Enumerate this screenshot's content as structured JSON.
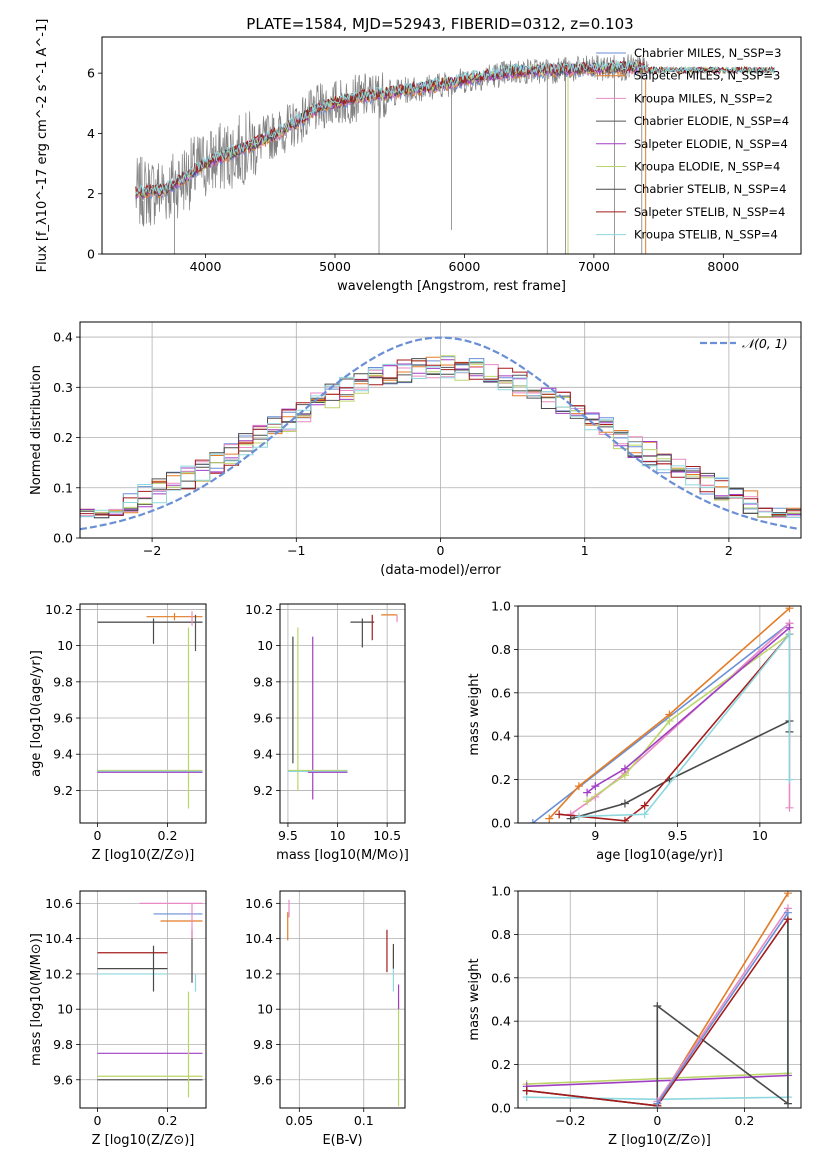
{
  "title": "PLATE=1584, MJD=52943, FIBERID=0312, z=0.103",
  "colors": [
    "#6a8fd6",
    "#e37c27",
    "#e88bc4",
    "#555555",
    "#a03fc4",
    "#bcd56a",
    "#4a4a4a",
    "#a51c1c",
    "#8dd7df"
  ],
  "chart_data": [
    {
      "id": "spectrum",
      "type": "line",
      "xlabel": "wavelength [Angstrom, rest frame]",
      "ylabel": "Flux [f_λ10^-17 erg cm^-2 s^-1 A^-1]",
      "xlim": [
        3200,
        8600
      ],
      "ylim": [
        0,
        7.2
      ],
      "xticks": [
        4000,
        5000,
        6000,
        7000,
        8000
      ],
      "yticks": [
        0,
        2,
        4,
        6
      ],
      "legend_position": "top-right",
      "legend": [
        "Chabrier MILES, N_SSP=3",
        "Salpeter MILES, N_SSP=3",
        "Kroupa MILES, N_SSP=2",
        "Chabrier ELODIE, N_SSP=4",
        "Salpeter ELODIE, N_SSP=4",
        "Kroupa ELODIE, N_SSP=4",
        "Chabrier STELIB, N_SSP=4",
        "Salpeter STELIB, N_SSP=4",
        "Kroupa STELIB, N_SSP=4"
      ],
      "data_color": "#808080",
      "continuum_x": [
        3450,
        3700,
        4000,
        4300,
        4600,
        4900,
        5200,
        5500,
        5800,
        6100,
        6400,
        6700,
        7000,
        7200,
        7400
      ],
      "continuum_y": [
        2.0,
        2.15,
        3.0,
        3.5,
        4.1,
        4.9,
        5.2,
        5.4,
        5.6,
        5.85,
        6.05,
        6.1,
        6.15,
        6.2,
        6.15
      ]
    },
    {
      "id": "residuals",
      "type": "line",
      "xlabel": "(data-model)/error",
      "ylabel": "Normed distribution",
      "xlim": [
        -2.5,
        2.5
      ],
      "ylim": [
        0,
        0.43
      ],
      "xticks": [
        -2,
        -1,
        0,
        1,
        2
      ],
      "yticks": [
        0.0,
        0.1,
        0.2,
        0.3,
        0.4
      ],
      "grid": true,
      "legend_position": "top-right",
      "legend": [
        "𝒩(0, 1)"
      ],
      "gaussian": {
        "mean": 0,
        "sigma": 1,
        "color": "#6a8fd6"
      }
    },
    {
      "id": "age-vs-Z",
      "type": "scatter",
      "xlabel": "Z [log10(Z/Z⊙)]",
      "ylabel": "age  [log10(age/yr)]",
      "xlim": [
        -0.05,
        0.31
      ],
      "ylim": [
        9.02,
        10.23
      ],
      "xticks": [
        0.0,
        0.2
      ],
      "yticks": [
        9.2,
        9.4,
        9.6,
        9.8,
        10.0,
        10.2
      ],
      "grid": true,
      "points": [
        {
          "x": 0.15,
          "y": 10.13,
          "xerr": 0.15,
          "yerr": 0.0,
          "c": 6
        },
        {
          "x": 0.15,
          "y": 10.13,
          "xerr": 0.15,
          "yerr": 0.0,
          "c": 3
        },
        {
          "x": 0.16,
          "y": 10.08,
          "xerr": 0.0,
          "yerr": 0.07,
          "c": 6
        },
        {
          "x": 0.22,
          "y": 10.16,
          "xerr": 0.08,
          "yerr": 0.02,
          "c": 1
        },
        {
          "x": 0.27,
          "y": 10.15,
          "xerr": 0.0,
          "yerr": 0.04,
          "c": 2
        },
        {
          "x": 0.28,
          "y": 10.07,
          "xerr": 0.0,
          "yerr": 0.1,
          "c": 3
        },
        {
          "x": 0.26,
          "y": 9.6,
          "xerr": 0.0,
          "yerr": 0.5,
          "c": 5
        },
        {
          "x": 0.15,
          "y": 9.31,
          "xerr": 0.15,
          "yerr": 0.0,
          "c": 5
        },
        {
          "x": 0.15,
          "y": 9.305,
          "xerr": 0.15,
          "yerr": 0.0,
          "c": 8
        },
        {
          "x": 0.15,
          "y": 9.3,
          "xerr": 0.15,
          "yerr": 0.0,
          "c": 4
        }
      ]
    },
    {
      "id": "age-vs-mass",
      "type": "scatter",
      "xlabel": "mass [log10(M/M⊙)]",
      "ylabel": "",
      "xlim": [
        9.42,
        10.68
      ],
      "ylim": [
        9.02,
        10.23
      ],
      "xticks": [
        9.5,
        10.0,
        10.5
      ],
      "yticks": [
        9.2,
        9.4,
        9.6,
        9.8,
        10.0,
        10.2
      ],
      "grid": true,
      "points": [
        {
          "x": 10.25,
          "y": 10.13,
          "xerr": 0.12,
          "yerr": 0.0,
          "c": 6
        },
        {
          "x": 10.35,
          "y": 10.1,
          "xerr": 0.0,
          "yerr": 0.07,
          "c": 7
        },
        {
          "x": 10.25,
          "y": 10.07,
          "xerr": 0.0,
          "yerr": 0.08,
          "c": 6
        },
        {
          "x": 10.52,
          "y": 10.17,
          "xerr": 0.08,
          "yerr": 0.0,
          "c": 1
        },
        {
          "x": 10.6,
          "y": 10.15,
          "xerr": 0.0,
          "yerr": 0.02,
          "c": 2
        },
        {
          "x": 9.6,
          "y": 9.65,
          "xerr": 0.0,
          "yerr": 0.45,
          "c": 5
        },
        {
          "x": 9.75,
          "y": 9.6,
          "xerr": 0.0,
          "yerr": 0.45,
          "c": 4
        },
        {
          "x": 9.8,
          "y": 9.31,
          "xerr": 0.3,
          "yerr": 0.0,
          "c": 5
        },
        {
          "x": 9.8,
          "y": 9.305,
          "xerr": 0.3,
          "yerr": 0.0,
          "c": 8
        },
        {
          "x": 9.9,
          "y": 9.3,
          "xerr": 0.2,
          "yerr": 0.0,
          "c": 4
        },
        {
          "x": 9.55,
          "y": 9.7,
          "xerr": 0.0,
          "yerr": 0.35,
          "c": 6
        }
      ]
    },
    {
      "id": "massweight-vs-age",
      "type": "line",
      "xlabel": "age  [log10(age/yr)]",
      "ylabel": "mass weight",
      "xlim": [
        8.53,
        10.25
      ],
      "ylim": [
        0,
        1.0
      ],
      "xticks": [
        9.0,
        9.5,
        10.0
      ],
      "yticks": [
        0.0,
        0.2,
        0.4,
        0.6,
        0.8,
        1.0
      ],
      "grid": true,
      "series": [
        {
          "c": 0,
          "x": [
            8.62,
            10.18
          ],
          "y": [
            0.0,
            0.92
          ]
        },
        {
          "c": 1,
          "x": [
            8.72,
            8.9,
            9.45,
            10.18
          ],
          "y": [
            0.02,
            0.17,
            0.5,
            0.99
          ]
        },
        {
          "c": 2,
          "x": [
            8.85,
            9.0,
            9.18,
            10.18,
            10.18
          ],
          "y": [
            0.04,
            0.12,
            0.23,
            0.92,
            0.07
          ]
        },
        {
          "c": 5,
          "x": [
            8.95,
            9.18,
            9.45,
            10.18
          ],
          "y": [
            0.1,
            0.22,
            0.47,
            0.87
          ]
        },
        {
          "c": 4,
          "x": [
            8.95,
            9.0,
            9.18,
            10.18
          ],
          "y": [
            0.14,
            0.17,
            0.25,
            0.9
          ]
        },
        {
          "c": 6,
          "x": [
            8.85,
            9.18,
            9.45,
            10.18,
            10.18
          ],
          "y": [
            0.02,
            0.09,
            0.2,
            0.47,
            0.42
          ]
        },
        {
          "c": 7,
          "x": [
            8.78,
            9.18,
            9.3,
            10.18
          ],
          "y": [
            0.04,
            0.01,
            0.08,
            0.87
          ]
        },
        {
          "c": 8,
          "x": [
            8.9,
            9.3,
            10.18,
            10.18
          ],
          "y": [
            0.03,
            0.04,
            0.87,
            0.2
          ]
        }
      ]
    },
    {
      "id": "mass-vs-Z",
      "type": "scatter",
      "xlabel": "Z [log10(Z/Z⊙)]",
      "ylabel": "mass [log10(M/M⊙)]",
      "xlim": [
        -0.05,
        0.31
      ],
      "ylim": [
        9.44,
        10.67
      ],
      "xticks": [
        0.0,
        0.2
      ],
      "yticks": [
        9.6,
        9.8,
        10.0,
        10.2,
        10.4,
        10.6
      ],
      "grid": true,
      "points": [
        {
          "x": 0.21,
          "y": 10.6,
          "xerr": 0.09,
          "yerr": 0.0,
          "c": 2
        },
        {
          "x": 0.23,
          "y": 10.54,
          "xerr": 0.07,
          "yerr": 0.0,
          "c": 0
        },
        {
          "x": 0.24,
          "y": 10.5,
          "xerr": 0.06,
          "yerr": 0.0,
          "c": 1
        },
        {
          "x": 0.1,
          "y": 10.32,
          "xerr": 0.1,
          "yerr": 0.0,
          "c": 7
        },
        {
          "x": 0.1,
          "y": 10.23,
          "xerr": 0.1,
          "yerr": 0.0,
          "c": 6
        },
        {
          "x": 0.1,
          "y": 10.2,
          "xerr": 0.1,
          "yerr": 0.0,
          "c": 8
        },
        {
          "x": 0.15,
          "y": 9.75,
          "xerr": 0.15,
          "yerr": 0.0,
          "c": 4
        },
        {
          "x": 0.15,
          "y": 9.62,
          "xerr": 0.15,
          "yerr": 0.0,
          "c": 5
        },
        {
          "x": 0.15,
          "y": 9.6,
          "xerr": 0.15,
          "yerr": 0.0,
          "c": 3
        },
        {
          "x": 0.16,
          "y": 10.23,
          "xerr": 0.0,
          "yerr": 0.13,
          "c": 6
        },
        {
          "x": 0.27,
          "y": 10.3,
          "xerr": 0.0,
          "yerr": 0.15,
          "c": 6
        },
        {
          "x": 0.26,
          "y": 9.8,
          "xerr": 0.0,
          "yerr": 0.3,
          "c": 5
        },
        {
          "x": 0.27,
          "y": 10.5,
          "xerr": 0.0,
          "yerr": 0.1,
          "c": 2
        },
        {
          "x": 0.28,
          "y": 10.15,
          "xerr": 0.0,
          "yerr": 0.05,
          "c": 8
        }
      ]
    },
    {
      "id": "mass-vs-EBV",
      "type": "scatter",
      "xlabel": "E(B-V)",
      "ylabel": "",
      "xlim": [
        0.035,
        0.132
      ],
      "ylim": [
        9.44,
        10.67
      ],
      "xticks": [
        0.05,
        0.1
      ],
      "yticks": [
        9.6,
        9.8,
        10.0,
        10.2,
        10.4,
        10.6
      ],
      "grid": true,
      "points": [
        {
          "x": 0.042,
          "y": 10.57,
          "xerr": 0.0,
          "yerr": 0.05,
          "c": 2
        },
        {
          "x": 0.041,
          "y": 10.47,
          "xerr": 0.0,
          "yerr": 0.08,
          "c": 1
        },
        {
          "x": 0.118,
          "y": 10.33,
          "xerr": 0.0,
          "yerr": 0.12,
          "c": 7
        },
        {
          "x": 0.123,
          "y": 10.22,
          "xerr": 0.0,
          "yerr": 0.12,
          "c": 8
        },
        {
          "x": 0.123,
          "y": 10.3,
          "xerr": 0.0,
          "yerr": 0.07,
          "c": 6
        },
        {
          "x": 0.127,
          "y": 9.75,
          "xerr": 0.0,
          "yerr": 0.3,
          "c": 5
        },
        {
          "x": 0.127,
          "y": 10.07,
          "xerr": 0.0,
          "yerr": 0.07,
          "c": 4
        }
      ]
    },
    {
      "id": "massweight-vs-Z",
      "type": "line",
      "xlabel": "Z [log10(Z/Z⊙)]",
      "ylabel": "mass weight",
      "xlim": [
        -0.32,
        0.33
      ],
      "ylim": [
        0,
        1.0
      ],
      "xticks": [
        -0.2,
        0.0,
        0.2
      ],
      "yticks": [
        0.0,
        0.2,
        0.4,
        0.6,
        0.8,
        1.0
      ],
      "grid": true,
      "series": [
        {
          "c": 5,
          "x": [
            -0.3,
            0.3
          ],
          "y": [
            0.11,
            0.16
          ]
        },
        {
          "c": 4,
          "x": [
            -0.3,
            0.3
          ],
          "y": [
            0.1,
            0.15
          ]
        },
        {
          "c": 8,
          "x": [
            -0.3,
            0.0,
            0.3,
            0.3
          ],
          "y": [
            0.05,
            0.04,
            0.05,
            0.87
          ]
        },
        {
          "c": 6,
          "x": [
            -0.3,
            0.0,
            0.0,
            0.3,
            0.3
          ],
          "y": [
            0.08,
            0.01,
            0.47,
            0.02,
            0.87
          ]
        },
        {
          "c": 7,
          "x": [
            -0.3,
            0.0,
            0.3
          ],
          "y": [
            0.08,
            0.01,
            0.87
          ]
        },
        {
          "c": 1,
          "x": [
            0.0,
            0.3
          ],
          "y": [
            0.02,
            0.99
          ]
        },
        {
          "c": 2,
          "x": [
            0.0,
            0.3
          ],
          "y": [
            0.03,
            0.92
          ]
        },
        {
          "c": 0,
          "x": [
            0.0,
            0.3
          ],
          "y": [
            0.02,
            0.9
          ]
        }
      ]
    }
  ]
}
